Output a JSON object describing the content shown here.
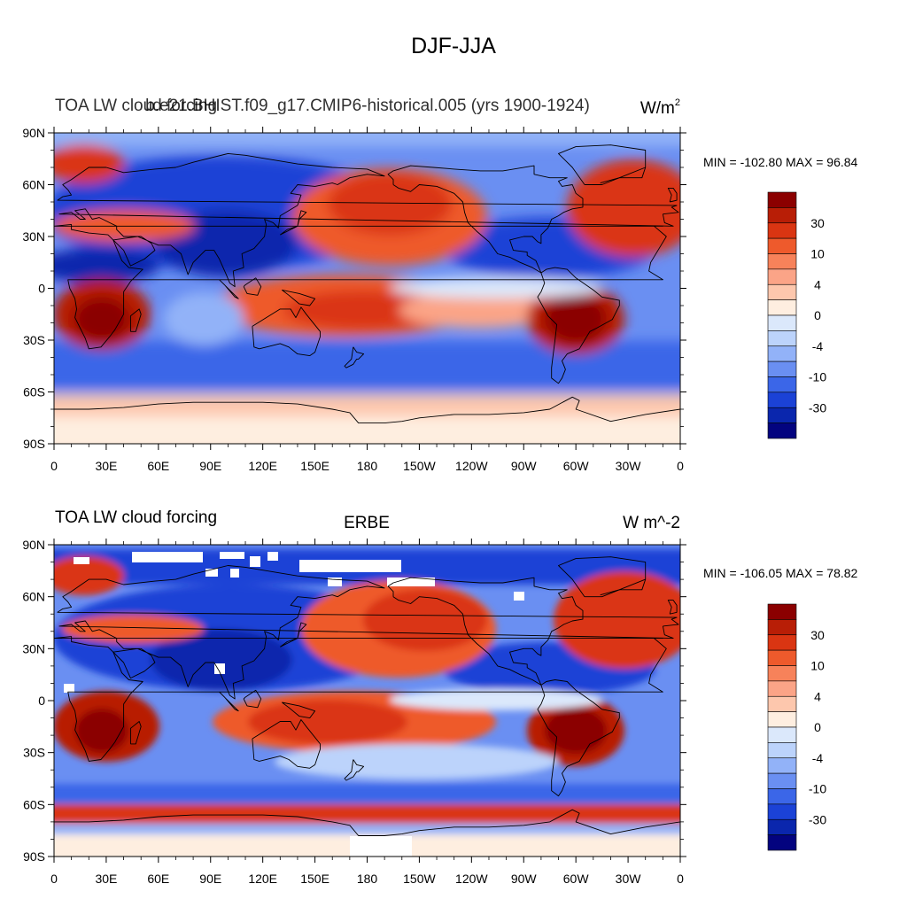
{
  "figure": {
    "title": "DJF-JJA"
  },
  "chart_data": [
    {
      "type": "heatmap",
      "title_left": "TOA LW cloud forcing",
      "title_center": "b.e21.BHIST.f09_g17.CMIP6-historical.005 (yrs 1900-1924)",
      "units_label": "W/m",
      "units_sup": "2",
      "stats_text": "MIN = -102.80 MAX =  96.84",
      "min": -102.8,
      "max": 96.84,
      "x_ticks": [
        "0",
        "30E",
        "60E",
        "90E",
        "120E",
        "150E",
        "180",
        "150W",
        "120W",
        "90W",
        "60W",
        "30W",
        "0"
      ],
      "y_ticks": [
        "90N",
        "60N",
        "30N",
        "0",
        "30S",
        "60S",
        "90S"
      ],
      "x_range_deg": [
        0,
        360
      ],
      "y_range_deg": [
        -90,
        90
      ],
      "colorbar_labels": [
        "30",
        "10",
        "4",
        "0",
        "-4",
        "-10",
        "-30"
      ]
    },
    {
      "type": "heatmap",
      "title_left": "TOA LW cloud forcing",
      "title_center": "ERBE",
      "units_label": "W m^-2",
      "stats_text": "MIN = -106.05 MAX =  78.82",
      "min": -106.05,
      "max": 78.82,
      "x_ticks": [
        "0",
        "30E",
        "60E",
        "90E",
        "120E",
        "150E",
        "180",
        "150W",
        "120W",
        "90W",
        "60W",
        "30W",
        "0"
      ],
      "y_ticks": [
        "90N",
        "60N",
        "30N",
        "0",
        "30S",
        "60S",
        "90S"
      ],
      "x_range_deg": [
        0,
        360
      ],
      "y_range_deg": [
        -90,
        90
      ],
      "colorbar_labels": [
        "30",
        "10",
        "4",
        "0",
        "-4",
        "-10",
        "-30"
      ]
    }
  ],
  "colorbar": {
    "colors": [
      "#8b0000",
      "#b81e06",
      "#da3512",
      "#ee5a2c",
      "#f7825a",
      "#fba487",
      "#fdc7ad",
      "#feeee0",
      "#dbe8fb",
      "#bcd3fb",
      "#92b2f8",
      "#6a8ff2",
      "#3b66e8",
      "#1b42d6",
      "#0a26ad",
      "#03037f"
    ]
  }
}
